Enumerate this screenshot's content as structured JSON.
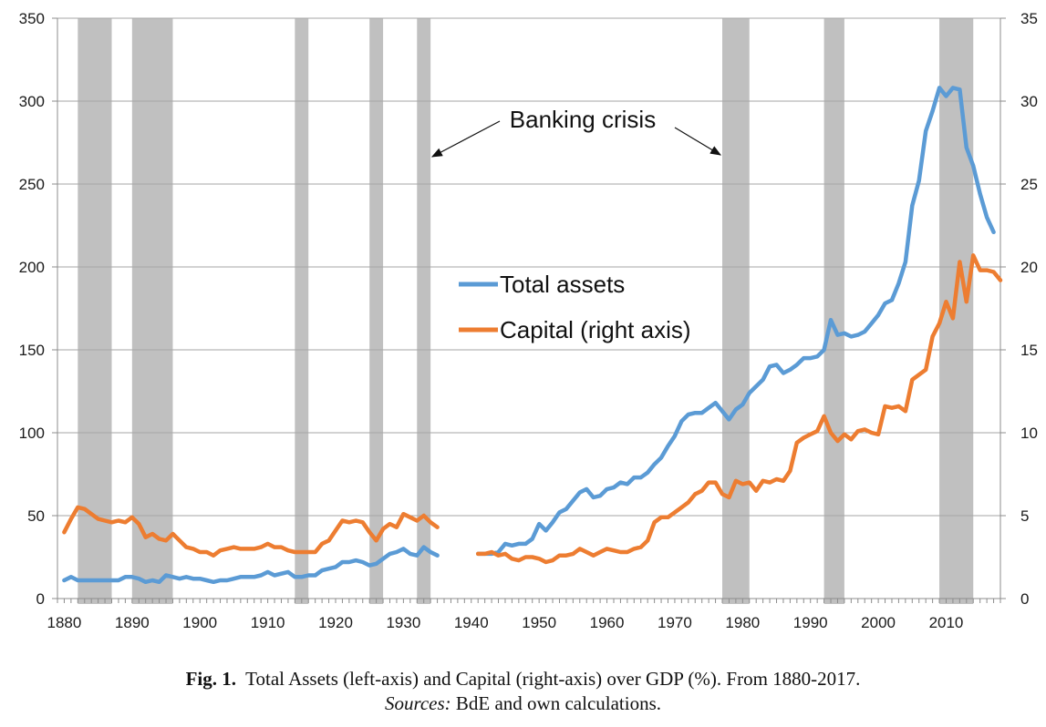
{
  "chart_data": {
    "type": "line",
    "title": "",
    "xlabel": "",
    "ylabel": "",
    "xlim": [
      1879,
      2018
    ],
    "x_ticks": [
      1880,
      1890,
      1900,
      1910,
      1920,
      1930,
      1940,
      1950,
      1960,
      1970,
      1980,
      1990,
      2000,
      2010
    ],
    "left_axis": {
      "ylim": [
        0,
        350
      ],
      "ticks": [
        0,
        50,
        100,
        150,
        200,
        250,
        300,
        350
      ]
    },
    "right_axis": {
      "ylim": [
        0,
        35
      ],
      "ticks": [
        0,
        5,
        10,
        15,
        20,
        25,
        30,
        35
      ]
    },
    "grid": "horizontal",
    "legend_position": "center",
    "crisis_label": "Banking crisis",
    "crisis_periods": [
      [
        1882,
        1887
      ],
      [
        1890,
        1896
      ],
      [
        1914,
        1916
      ],
      [
        1925,
        1927
      ],
      [
        1932,
        1934
      ],
      [
        1977,
        1981
      ],
      [
        1992,
        1995
      ],
      [
        2009,
        2014
      ]
    ],
    "series": [
      {
        "name": "Total assets",
        "axis": "left",
        "color": "#5b9bd5",
        "segments": [
          [
            [
              1880,
              11
            ],
            [
              1881,
              13
            ],
            [
              1882,
              11
            ],
            [
              1883,
              11
            ],
            [
              1884,
              11
            ],
            [
              1885,
              11
            ],
            [
              1886,
              11
            ],
            [
              1887,
              11
            ],
            [
              1888,
              11
            ],
            [
              1889,
              13
            ],
            [
              1890,
              13
            ],
            [
              1891,
              12
            ],
            [
              1892,
              10
            ],
            [
              1893,
              11
            ],
            [
              1894,
              10
            ],
            [
              1895,
              14
            ],
            [
              1896,
              13
            ],
            [
              1897,
              12
            ],
            [
              1898,
              13
            ],
            [
              1899,
              12
            ],
            [
              1900,
              12
            ],
            [
              1901,
              11
            ],
            [
              1902,
              10
            ],
            [
              1903,
              11
            ],
            [
              1904,
              11
            ],
            [
              1905,
              12
            ],
            [
              1906,
              13
            ],
            [
              1907,
              13
            ],
            [
              1908,
              13
            ],
            [
              1909,
              14
            ],
            [
              1910,
              16
            ],
            [
              1911,
              14
            ],
            [
              1912,
              15
            ],
            [
              1913,
              16
            ],
            [
              1914,
              13
            ],
            [
              1915,
              13
            ],
            [
              1916,
              14
            ],
            [
              1917,
              14
            ],
            [
              1918,
              17
            ],
            [
              1919,
              18
            ],
            [
              1920,
              19
            ],
            [
              1921,
              22
            ],
            [
              1922,
              22
            ],
            [
              1923,
              23
            ],
            [
              1924,
              22
            ],
            [
              1925,
              20
            ],
            [
              1926,
              21
            ],
            [
              1927,
              24
            ],
            [
              1928,
              27
            ],
            [
              1929,
              28
            ],
            [
              1930,
              30
            ],
            [
              1931,
              27
            ],
            [
              1932,
              26
            ],
            [
              1933,
              31
            ],
            [
              1934,
              28
            ],
            [
              1935,
              26
            ]
          ],
          [
            [
              1941,
              27
            ],
            [
              1942,
              27
            ],
            [
              1943,
              27
            ],
            [
              1944,
              28
            ],
            [
              1945,
              33
            ],
            [
              1946,
              32
            ],
            [
              1947,
              33
            ],
            [
              1948,
              33
            ],
            [
              1949,
              36
            ],
            [
              1950,
              45
            ],
            [
              1951,
              41
            ],
            [
              1952,
              46
            ],
            [
              1953,
              52
            ],
            [
              1954,
              54
            ],
            [
              1955,
              59
            ],
            [
              1956,
              64
            ],
            [
              1957,
              66
            ],
            [
              1958,
              61
            ],
            [
              1959,
              62
            ],
            [
              1960,
              66
            ],
            [
              1961,
              67
            ],
            [
              1962,
              70
            ],
            [
              1963,
              69
            ],
            [
              1964,
              73
            ],
            [
              1965,
              73
            ],
            [
              1966,
              76
            ],
            [
              1967,
              81
            ],
            [
              1968,
              85
            ],
            [
              1969,
              92
            ],
            [
              1970,
              98
            ],
            [
              1971,
              107
            ],
            [
              1972,
              111
            ],
            [
              1973,
              112
            ],
            [
              1974,
              112
            ],
            [
              1975,
              115
            ],
            [
              1976,
              118
            ],
            [
              1977,
              113
            ],
            [
              1978,
              108
            ],
            [
              1979,
              114
            ],
            [
              1980,
              117
            ],
            [
              1981,
              124
            ],
            [
              1982,
              128
            ],
            [
              1983,
              132
            ],
            [
              1984,
              140
            ],
            [
              1985,
              141
            ],
            [
              1986,
              136
            ],
            [
              1987,
              138
            ],
            [
              1988,
              141
            ],
            [
              1989,
              145
            ],
            [
              1990,
              145
            ],
            [
              1991,
              146
            ],
            [
              1992,
              150
            ],
            [
              1993,
              168
            ],
            [
              1994,
              159
            ],
            [
              1995,
              160
            ],
            [
              1996,
              158
            ],
            [
              1997,
              159
            ],
            [
              1998,
              161
            ],
            [
              1999,
              166
            ],
            [
              2000,
              171
            ],
            [
              2001,
              178
            ],
            [
              2002,
              180
            ],
            [
              2003,
              190
            ],
            [
              2004,
              203
            ],
            [
              2005,
              237
            ],
            [
              2006,
              252
            ],
            [
              2007,
              282
            ],
            [
              2008,
              294
            ],
            [
              2009,
              308
            ],
            [
              2010,
              303
            ],
            [
              2011,
              308
            ],
            [
              2012,
              307
            ],
            [
              2013,
              272
            ],
            [
              2014,
              261
            ],
            [
              2015,
              244
            ],
            [
              2016,
              230
            ],
            [
              2017,
              221
            ]
          ]
        ]
      },
      {
        "name": "Capital (right axis)",
        "axis": "right",
        "color": "#ed7d31",
        "segments": [
          [
            [
              1880,
              4.0
            ],
            [
              1881,
              4.8
            ],
            [
              1882,
              5.5
            ],
            [
              1883,
              5.4
            ],
            [
              1884,
              5.1
            ],
            [
              1885,
              4.8
            ],
            [
              1886,
              4.7
            ],
            [
              1887,
              4.6
            ],
            [
              1888,
              4.7
            ],
            [
              1889,
              4.6
            ],
            [
              1890,
              4.9
            ],
            [
              1891,
              4.5
            ],
            [
              1892,
              3.7
            ],
            [
              1893,
              3.9
            ],
            [
              1894,
              3.6
            ],
            [
              1895,
              3.5
            ],
            [
              1896,
              3.9
            ],
            [
              1897,
              3.5
            ],
            [
              1898,
              3.1
            ],
            [
              1899,
              3.0
            ],
            [
              1900,
              2.8
            ],
            [
              1901,
              2.8
            ],
            [
              1902,
              2.6
            ],
            [
              1903,
              2.9
            ],
            [
              1904,
              3.0
            ],
            [
              1905,
              3.1
            ],
            [
              1906,
              3.0
            ],
            [
              1907,
              3.0
            ],
            [
              1908,
              3.0
            ],
            [
              1909,
              3.1
            ],
            [
              1910,
              3.3
            ],
            [
              1911,
              3.1
            ],
            [
              1912,
              3.1
            ],
            [
              1913,
              2.9
            ],
            [
              1914,
              2.8
            ],
            [
              1915,
              2.8
            ],
            [
              1916,
              2.8
            ],
            [
              1917,
              2.8
            ],
            [
              1918,
              3.3
            ],
            [
              1919,
              3.5
            ],
            [
              1920,
              4.1
            ],
            [
              1921,
              4.7
            ],
            [
              1922,
              4.6
            ],
            [
              1923,
              4.7
            ],
            [
              1924,
              4.6
            ],
            [
              1925,
              4.0
            ],
            [
              1926,
              3.5
            ],
            [
              1927,
              4.2
            ],
            [
              1928,
              4.5
            ],
            [
              1929,
              4.3
            ],
            [
              1930,
              5.1
            ],
            [
              1931,
              4.9
            ],
            [
              1932,
              4.7
            ],
            [
              1933,
              5.0
            ],
            [
              1934,
              4.6
            ],
            [
              1935,
              4.3
            ]
          ],
          [
            [
              1941,
              2.7
            ],
            [
              1942,
              2.7
            ],
            [
              1943,
              2.8
            ],
            [
              1944,
              2.6
            ],
            [
              1945,
              2.7
            ],
            [
              1946,
              2.4
            ],
            [
              1947,
              2.3
            ],
            [
              1948,
              2.5
            ],
            [
              1949,
              2.5
            ],
            [
              1950,
              2.4
            ],
            [
              1951,
              2.2
            ],
            [
              1952,
              2.3
            ],
            [
              1953,
              2.6
            ],
            [
              1954,
              2.6
            ],
            [
              1955,
              2.7
            ],
            [
              1956,
              3.0
            ],
            [
              1957,
              2.8
            ],
            [
              1958,
              2.6
            ],
            [
              1959,
              2.8
            ],
            [
              1960,
              3.0
            ],
            [
              1961,
              2.9
            ],
            [
              1962,
              2.8
            ],
            [
              1963,
              2.8
            ],
            [
              1964,
              3.0
            ],
            [
              1965,
              3.1
            ],
            [
              1966,
              3.5
            ],
            [
              1967,
              4.6
            ],
            [
              1968,
              4.9
            ],
            [
              1969,
              4.9
            ],
            [
              1970,
              5.2
            ],
            [
              1971,
              5.5
            ],
            [
              1972,
              5.8
            ],
            [
              1973,
              6.3
            ],
            [
              1974,
              6.5
            ],
            [
              1975,
              7.0
            ],
            [
              1976,
              7.0
            ],
            [
              1977,
              6.3
            ],
            [
              1978,
              6.1
            ],
            [
              1979,
              7.1
            ],
            [
              1980,
              6.9
            ],
            [
              1981,
              7.0
            ],
            [
              1982,
              6.5
            ],
            [
              1983,
              7.1
            ],
            [
              1984,
              7.0
            ],
            [
              1985,
              7.2
            ],
            [
              1986,
              7.1
            ],
            [
              1987,
              7.7
            ],
            [
              1988,
              9.4
            ],
            [
              1989,
              9.7
            ],
            [
              1990,
              9.9
            ],
            [
              1991,
              10.1
            ],
            [
              1992,
              11.0
            ],
            [
              1993,
              10.0
            ],
            [
              1994,
              9.5
            ],
            [
              1995,
              9.9
            ],
            [
              1996,
              9.6
            ],
            [
              1997,
              10.1
            ],
            [
              1998,
              10.2
            ],
            [
              1999,
              10.0
            ],
            [
              2000,
              9.9
            ],
            [
              2001,
              11.6
            ],
            [
              2002,
              11.5
            ],
            [
              2003,
              11.6
            ],
            [
              2004,
              11.3
            ],
            [
              2005,
              13.2
            ],
            [
              2006,
              13.5
            ],
            [
              2007,
              13.8
            ],
            [
              2008,
              15.8
            ],
            [
              2009,
              16.6
            ],
            [
              2010,
              17.9
            ],
            [
              2011,
              16.9
            ],
            [
              2012,
              20.3
            ],
            [
              2013,
              17.9
            ],
            [
              2014,
              20.7
            ],
            [
              2015,
              19.8
            ],
            [
              2016,
              19.8
            ],
            [
              2017,
              19.7
            ],
            [
              2018,
              19.2
            ]
          ]
        ]
      }
    ]
  },
  "caption": {
    "fig_label": "Fig. 1.",
    "line1_text": "Total Assets (left-axis) and Capital (right-axis) over GDP (%). From 1880-2017.",
    "sources_label": "Sources:",
    "sources_text": "BdE and own calculations."
  }
}
